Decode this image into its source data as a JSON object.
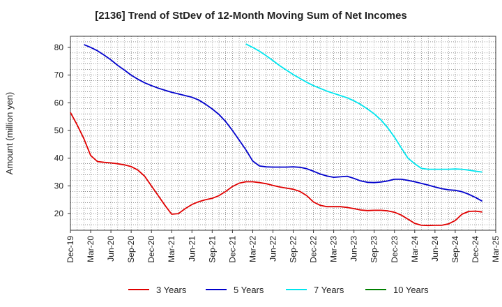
{
  "chart_data": {
    "type": "line",
    "title": "[2136]  Trend of StDev of 12-Month Moving Sum of Net Incomes",
    "xlabel": "",
    "ylabel": "Amount (million yen)",
    "ylim": [
      14,
      84
    ],
    "yticks": [
      20,
      30,
      40,
      50,
      60,
      70,
      80
    ],
    "xlim": [
      "2019-12",
      "2025-03"
    ],
    "xticks": [
      "Dec-19",
      "Mar-20",
      "Jun-20",
      "Sep-20",
      "Dec-20",
      "Mar-21",
      "Jun-21",
      "Sep-21",
      "Dec-21",
      "Mar-22",
      "Jun-22",
      "Sep-22",
      "Dec-22",
      "Mar-23",
      "Jun-23",
      "Sep-23",
      "Dec-23",
      "Mar-24",
      "Jun-24",
      "Sep-24",
      "Dec-24",
      "Mar-25"
    ],
    "grid": true,
    "legend_position": "bottom",
    "series": [
      {
        "name": "3 Years",
        "color": "#e00000",
        "points": [
          [
            "2019-12",
            56.5
          ],
          [
            "2020-01",
            52
          ],
          [
            "2020-02",
            47
          ],
          [
            "2020-03",
            41
          ],
          [
            "2020-04",
            38.8
          ],
          [
            "2020-05",
            38.5
          ],
          [
            "2020-06",
            38.3
          ],
          [
            "2020-07",
            38
          ],
          [
            "2020-08",
            37.6
          ],
          [
            "2020-09",
            37
          ],
          [
            "2020-10",
            35.7
          ],
          [
            "2020-11",
            33.5
          ],
          [
            "2020-12",
            30
          ],
          [
            "2021-01",
            26.5
          ],
          [
            "2021-02",
            23
          ],
          [
            "2021-03",
            19.8
          ],
          [
            "2021-04",
            20
          ],
          [
            "2021-05",
            21.8
          ],
          [
            "2021-06",
            23.3
          ],
          [
            "2021-07",
            24.3
          ],
          [
            "2021-08",
            25
          ],
          [
            "2021-09",
            25.5
          ],
          [
            "2021-10",
            26.5
          ],
          [
            "2021-11",
            28
          ],
          [
            "2021-12",
            29.8
          ],
          [
            "2022-01",
            31
          ],
          [
            "2022-02",
            31.5
          ],
          [
            "2022-03",
            31.5
          ],
          [
            "2022-04",
            31.2
          ],
          [
            "2022-05",
            30.8
          ],
          [
            "2022-06",
            30.2
          ],
          [
            "2022-07",
            29.6
          ],
          [
            "2022-08",
            29.2
          ],
          [
            "2022-09",
            28.8
          ],
          [
            "2022-10",
            28
          ],
          [
            "2022-11",
            26.5
          ],
          [
            "2022-12",
            24.2
          ],
          [
            "2023-01",
            23
          ],
          [
            "2023-02",
            22.5
          ],
          [
            "2023-03",
            22.5
          ],
          [
            "2023-04",
            22.5
          ],
          [
            "2023-05",
            22.2
          ],
          [
            "2023-06",
            21.8
          ],
          [
            "2023-07",
            21.3
          ],
          [
            "2023-08",
            21.1
          ],
          [
            "2023-09",
            21.2
          ],
          [
            "2023-10",
            21.2
          ],
          [
            "2023-11",
            21
          ],
          [
            "2023-12",
            20.5
          ],
          [
            "2024-01",
            19.5
          ],
          [
            "2024-02",
            18
          ],
          [
            "2024-03",
            16.5
          ],
          [
            "2024-04",
            15.8
          ],
          [
            "2024-05",
            15.7
          ],
          [
            "2024-06",
            15.8
          ],
          [
            "2024-07",
            15.8
          ],
          [
            "2024-08",
            16.3
          ],
          [
            "2024-09",
            17.5
          ],
          [
            "2024-10",
            19.8
          ],
          [
            "2024-11",
            20.8
          ],
          [
            "2024-12",
            20.9
          ],
          [
            "2025-01",
            20.6
          ]
        ]
      },
      {
        "name": "5 Years",
        "color": "#0000cc",
        "points": [
          [
            "2020-02",
            81
          ],
          [
            "2020-03",
            80
          ],
          [
            "2020-04",
            78.8
          ],
          [
            "2020-05",
            77.2
          ],
          [
            "2020-06",
            75.5
          ],
          [
            "2020-07",
            73.5
          ],
          [
            "2020-08",
            71.8
          ],
          [
            "2020-09",
            70
          ],
          [
            "2020-10",
            68.5
          ],
          [
            "2020-11",
            67.2
          ],
          [
            "2020-12",
            66.2
          ],
          [
            "2021-01",
            65.3
          ],
          [
            "2021-02",
            64.5
          ],
          [
            "2021-03",
            63.8
          ],
          [
            "2021-04",
            63.2
          ],
          [
            "2021-05",
            62.6
          ],
          [
            "2021-06",
            62
          ],
          [
            "2021-07",
            61
          ],
          [
            "2021-08",
            59.5
          ],
          [
            "2021-09",
            57.8
          ],
          [
            "2021-10",
            55.8
          ],
          [
            "2021-11",
            53.2
          ],
          [
            "2021-12",
            50
          ],
          [
            "2022-01",
            46.5
          ],
          [
            "2022-02",
            43
          ],
          [
            "2022-03",
            39
          ],
          [
            "2022-04",
            37.2
          ],
          [
            "2022-05",
            36.9
          ],
          [
            "2022-06",
            36.8
          ],
          [
            "2022-07",
            36.8
          ],
          [
            "2022-08",
            36.8
          ],
          [
            "2022-09",
            36.9
          ],
          [
            "2022-10",
            36.7
          ],
          [
            "2022-11",
            36.2
          ],
          [
            "2022-12",
            35.3
          ],
          [
            "2023-01",
            34.3
          ],
          [
            "2023-02",
            33.6
          ],
          [
            "2023-03",
            33.1
          ],
          [
            "2023-04",
            33.3
          ],
          [
            "2023-05",
            33.5
          ],
          [
            "2023-06",
            32.7
          ],
          [
            "2023-07",
            31.8
          ],
          [
            "2023-08",
            31.3
          ],
          [
            "2023-09",
            31.2
          ],
          [
            "2023-10",
            31.4
          ],
          [
            "2023-11",
            31.8
          ],
          [
            "2023-12",
            32.4
          ],
          [
            "2024-01",
            32.4
          ],
          [
            "2024-02",
            32
          ],
          [
            "2024-03",
            31.5
          ],
          [
            "2024-04",
            30.9
          ],
          [
            "2024-05",
            30.3
          ],
          [
            "2024-06",
            29.6
          ],
          [
            "2024-07",
            29
          ],
          [
            "2024-08",
            28.6
          ],
          [
            "2024-09",
            28.4
          ],
          [
            "2024-10",
            27.9
          ],
          [
            "2024-11",
            27
          ],
          [
            "2024-12",
            25.8
          ],
          [
            "2025-01",
            24.5
          ]
        ]
      },
      {
        "name": "7 Years",
        "color": "#00e5ee",
        "points": [
          [
            "2022-02",
            81.2
          ],
          [
            "2022-03",
            80
          ],
          [
            "2022-04",
            78.6
          ],
          [
            "2022-05",
            77
          ],
          [
            "2022-06",
            75.2
          ],
          [
            "2022-07",
            73.4
          ],
          [
            "2022-08",
            71.8
          ],
          [
            "2022-09",
            70.2
          ],
          [
            "2022-10",
            68.8
          ],
          [
            "2022-11",
            67.4
          ],
          [
            "2022-12",
            66.2
          ],
          [
            "2023-01",
            65.2
          ],
          [
            "2023-02",
            64.2
          ],
          [
            "2023-03",
            63.4
          ],
          [
            "2023-04",
            62.6
          ],
          [
            "2023-05",
            61.8
          ],
          [
            "2023-06",
            60.7
          ],
          [
            "2023-07",
            59.4
          ],
          [
            "2023-08",
            57.8
          ],
          [
            "2023-09",
            56
          ],
          [
            "2023-10",
            53.8
          ],
          [
            "2023-11",
            51
          ],
          [
            "2023-12",
            47.6
          ],
          [
            "2024-01",
            43.8
          ],
          [
            "2024-02",
            40
          ],
          [
            "2024-03",
            38
          ],
          [
            "2024-04",
            36.3
          ],
          [
            "2024-05",
            36
          ],
          [
            "2024-06",
            36
          ],
          [
            "2024-07",
            36
          ],
          [
            "2024-08",
            36
          ],
          [
            "2024-09",
            36.1
          ],
          [
            "2024-10",
            36
          ],
          [
            "2024-11",
            35.7
          ],
          [
            "2024-12",
            35.3
          ],
          [
            "2025-01",
            35
          ]
        ]
      },
      {
        "name": "10 Years",
        "color": "#008000",
        "points": []
      }
    ]
  }
}
